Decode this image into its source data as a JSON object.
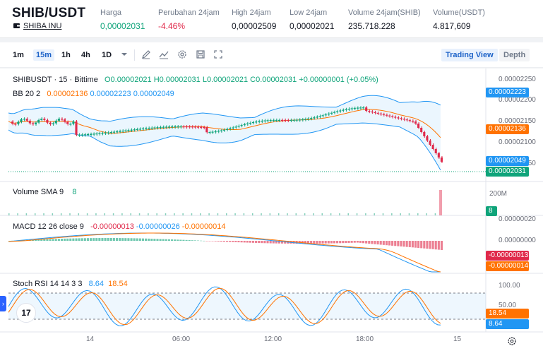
{
  "header": {
    "pair": "SHIB/USDT",
    "coin_name": "SHIBA INU",
    "stats": [
      {
        "label": "Harga",
        "value": "0,00002031",
        "tone": "up"
      },
      {
        "label": "Perubahan 24jam",
        "value": "-4.46%",
        "tone": "down"
      },
      {
        "label": "High 24jam",
        "value": "0,00002509",
        "tone": "neutral"
      },
      {
        "label": "Low 24jam",
        "value": "0,00002021",
        "tone": "neutral"
      },
      {
        "label": "Volume 24jam(SHIB)",
        "value": "235.718.228",
        "tone": "neutral"
      },
      {
        "label": "Volume(USDT)",
        "value": "4.817,609",
        "tone": "neutral"
      }
    ]
  },
  "toolbar": {
    "timeframes": [
      "1m",
      "15m",
      "1h",
      "4h",
      "1D"
    ],
    "active_timeframe": "15m",
    "icons": [
      "chevron-down-icon",
      "draw-icon",
      "indicators-icon",
      "settings-icon",
      "save-icon",
      "fullscreen-icon"
    ],
    "views": [
      {
        "label": "Trading View",
        "active": true
      },
      {
        "label": "Depth",
        "active": false
      }
    ]
  },
  "chart": {
    "symbol_line": "SHIBUSDT · 15 · Bittime",
    "ohlc": {
      "o": "O0.00002021",
      "h": "H0.00002031",
      "l": "L0.00002021",
      "c": "C0.00002031",
      "chg": "+0.00000001 (+0.05%)"
    },
    "bb_label": "BB 20 2",
    "bb_values": {
      "basis": "0.00002136",
      "upper": "0.00002223",
      "lower": "0.00002049"
    },
    "price_axis": [
      "0.00002250",
      "0.00002200",
      "0.00002150",
      "0.00002100",
      "0.00002050"
    ],
    "price_tags": [
      {
        "value": "0.00002223",
        "color": "#2196f3"
      },
      {
        "value": "0.00002136",
        "color": "#ff7200"
      },
      {
        "value": "0.00002049",
        "color": "#2196f3"
      },
      {
        "value": "0.00002031",
        "color": "#0fa47a"
      }
    ],
    "volume_label": "Volume SMA 9",
    "volume_value": "8",
    "volume_axis": "200M",
    "volume_tag": "8",
    "macd_label": "MACD 12 26 close 9",
    "macd_values": {
      "hist": "-0.00000013",
      "macd": "-0.00000026",
      "signal": "-0.00000014"
    },
    "macd_axis": [
      "0.00000020",
      "0.00000000"
    ],
    "macd_tags": [
      {
        "value": "-0.00000013",
        "color": "#e0294a"
      },
      {
        "value": "-0.00000014",
        "color": "#ff7200"
      }
    ],
    "stoch_label": "Stoch RSI 14 14 3 3",
    "stoch_values": {
      "k": "8.64",
      "d": "18.54"
    },
    "stoch_axis": [
      "100.00",
      "50.00"
    ],
    "stoch_tags": [
      {
        "value": "18.54",
        "color": "#ff7200"
      },
      {
        "value": "8.64",
        "color": "#2196f3"
      }
    ],
    "time_axis": [
      "14",
      "06:00",
      "12:00",
      "18:00",
      "15"
    ],
    "logo_text": "17"
  },
  "colors": {
    "up": "#0fa47a",
    "down": "#e0294a",
    "bb_basis": "#ff7200",
    "bb_band": "#2196f3",
    "accent": "#1e63c8"
  }
}
